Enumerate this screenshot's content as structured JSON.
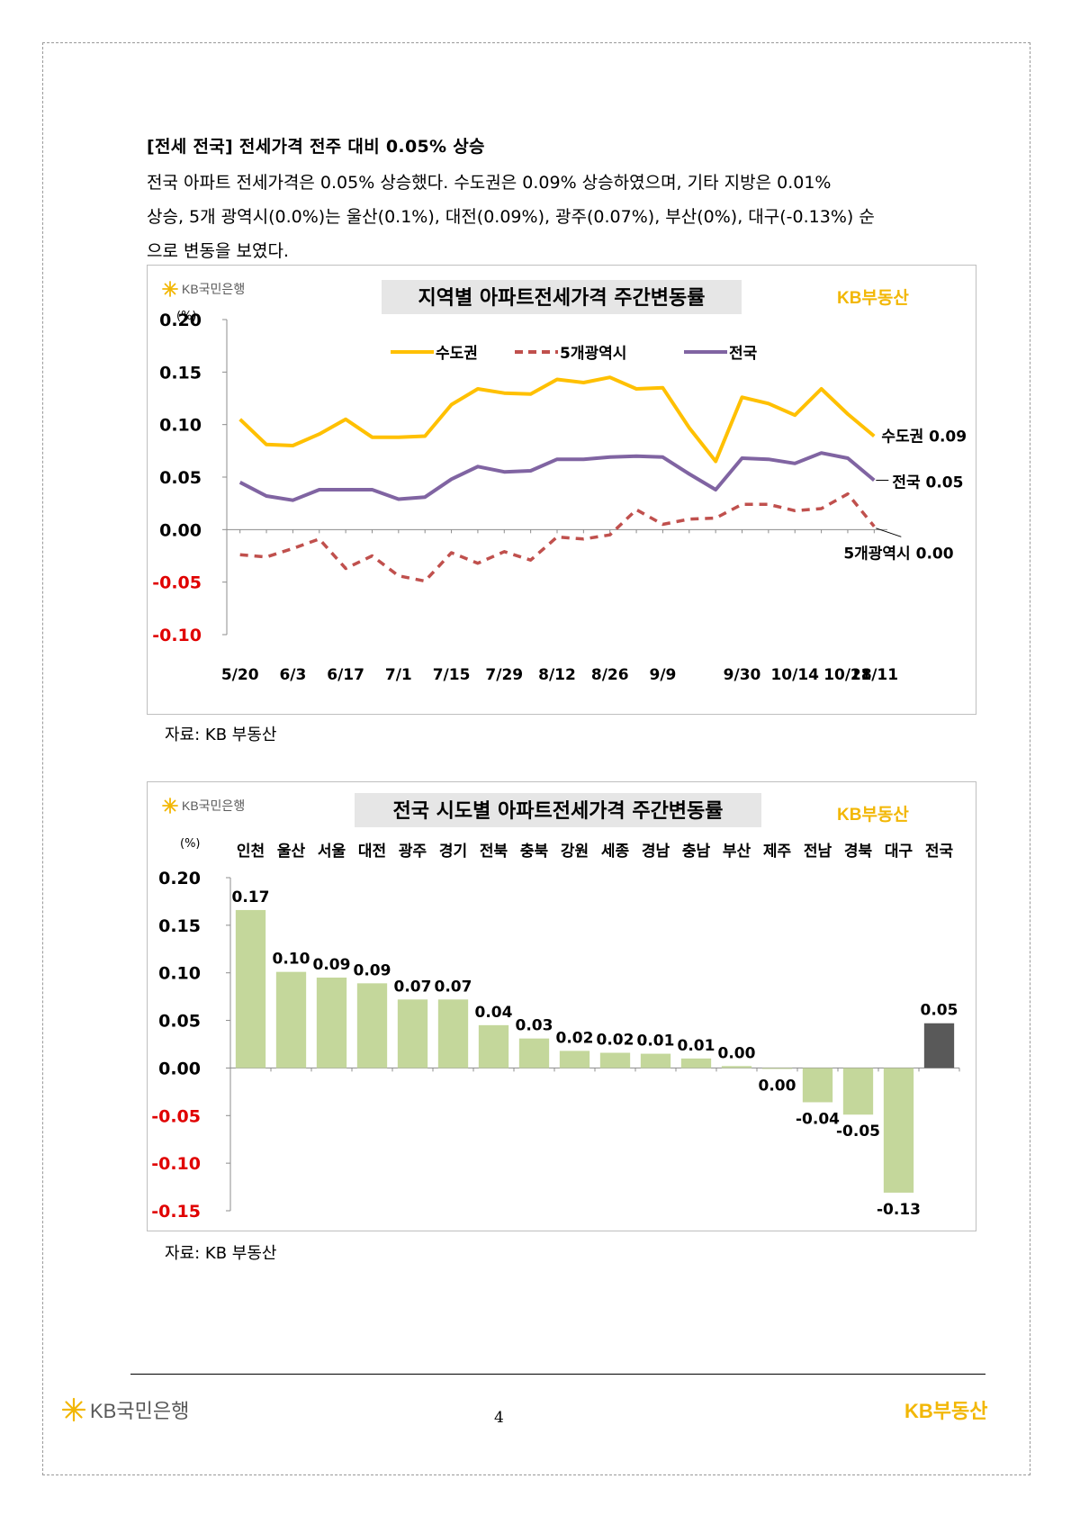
{
  "section": {
    "heading": "[전세 전국] 전세가격 전주 대비 0.05% 상승",
    "paragraph_lines": [
      "전국 아파트 전세가격은 0.05% 상승했다. 수도권은 0.09% 상승하였으며, 기타 지방은 0.01%",
      "상승, 5개 광역시(0.0%)는 울산(0.1%), 대전(0.09%), 광주(0.07%), 부산(0%), 대구(-0.13%) 순",
      "으로 변동을 보였다."
    ]
  },
  "brand": {
    "kb_bank": "KB국민은행",
    "kb_estate": "KB부동산",
    "kb_color": "#f2b705",
    "gray_color": "#595959"
  },
  "source_label": "자료: KB 부동산",
  "page_number": "4",
  "chart_data": [
    {
      "type": "line",
      "title": "지역별 아파트전세가격 주간변동률",
      "ylabel": "(%)",
      "ylim": [
        -0.1,
        0.2
      ],
      "yticks": [
        "0.20",
        "0.15",
        "0.10",
        "0.05",
        "0.00",
        "-0.05",
        "-0.10"
      ],
      "negative_tick_color": "#e00000",
      "grid": false,
      "legend_position": "top",
      "x_tick_labels": [
        "5/20",
        "6/3",
        "6/17",
        "7/1",
        "7/15",
        "7/29",
        "8/12",
        "8/26",
        "9/9",
        "9/30",
        "10/14",
        "10/28",
        "11/11"
      ],
      "series": [
        {
          "name": "수도권",
          "color": "#ffc000",
          "style": "solid",
          "end_label": "수도권 0.09",
          "values": [
            0.105,
            0.081,
            0.08,
            0.091,
            0.105,
            0.088,
            0.088,
            0.089,
            0.119,
            0.134,
            0.13,
            0.129,
            0.143,
            0.14,
            0.145,
            0.134,
            0.135,
            0.097,
            0.065,
            0.126,
            0.12,
            0.109,
            0.134,
            0.11,
            0.089
          ]
        },
        {
          "name": "5개광역시",
          "color": "#c0504d",
          "style": "dashed",
          "end_label": "5개광역시 0.00",
          "values": [
            -0.024,
            -0.026,
            -0.018,
            -0.009,
            -0.037,
            -0.025,
            -0.044,
            -0.049,
            -0.022,
            -0.032,
            -0.021,
            -0.029,
            -0.007,
            -0.009,
            -0.005,
            0.019,
            0.005,
            0.01,
            0.011,
            0.024,
            0.024,
            0.018,
            0.02,
            0.034,
            0.003
          ]
        },
        {
          "name": "전국",
          "color": "#8064a2",
          "style": "solid",
          "end_label": "전국 0.05",
          "values": [
            0.045,
            0.032,
            0.028,
            0.038,
            0.038,
            0.038,
            0.029,
            0.031,
            0.048,
            0.06,
            0.055,
            0.056,
            0.067,
            0.067,
            0.069,
            0.07,
            0.069,
            0.053,
            0.038,
            0.068,
            0.067,
            0.063,
            0.073,
            0.068,
            0.047
          ]
        }
      ]
    },
    {
      "type": "bar",
      "title": "전국 시도별 아파트전세가격 주간변동률",
      "ylabel": "(%)",
      "ylim": [
        -0.15,
        0.2
      ],
      "yticks": [
        "0.20",
        "0.15",
        "0.10",
        "0.05",
        "0.00",
        "-0.05",
        "-0.10",
        "-0.15"
      ],
      "negative_tick_color": "#e00000",
      "categories": [
        "인천",
        "울산",
        "서울",
        "대전",
        "광주",
        "경기",
        "전북",
        "충북",
        "강원",
        "세종",
        "경남",
        "충남",
        "부산",
        "제주",
        "전남",
        "경북",
        "대구",
        "전국"
      ],
      "values": [
        0.166,
        0.101,
        0.095,
        0.089,
        0.072,
        0.072,
        0.045,
        0.031,
        0.018,
        0.016,
        0.015,
        0.01,
        0.002,
        -0.001,
        -0.036,
        -0.049,
        -0.131,
        0.047
      ],
      "data_labels": [
        "0.17",
        "0.10",
        "0.09",
        "0.09",
        "0.07",
        "0.07",
        "0.04",
        "0.03",
        "0.02",
        "0.02",
        "0.01",
        "0.01",
        "0.00",
        "0.00",
        "-0.04",
        "-0.05",
        "-0.13",
        "0.05"
      ],
      "bar_color": "#c4d79b",
      "highlight_category": "전국",
      "highlight_color": "#595959"
    }
  ]
}
